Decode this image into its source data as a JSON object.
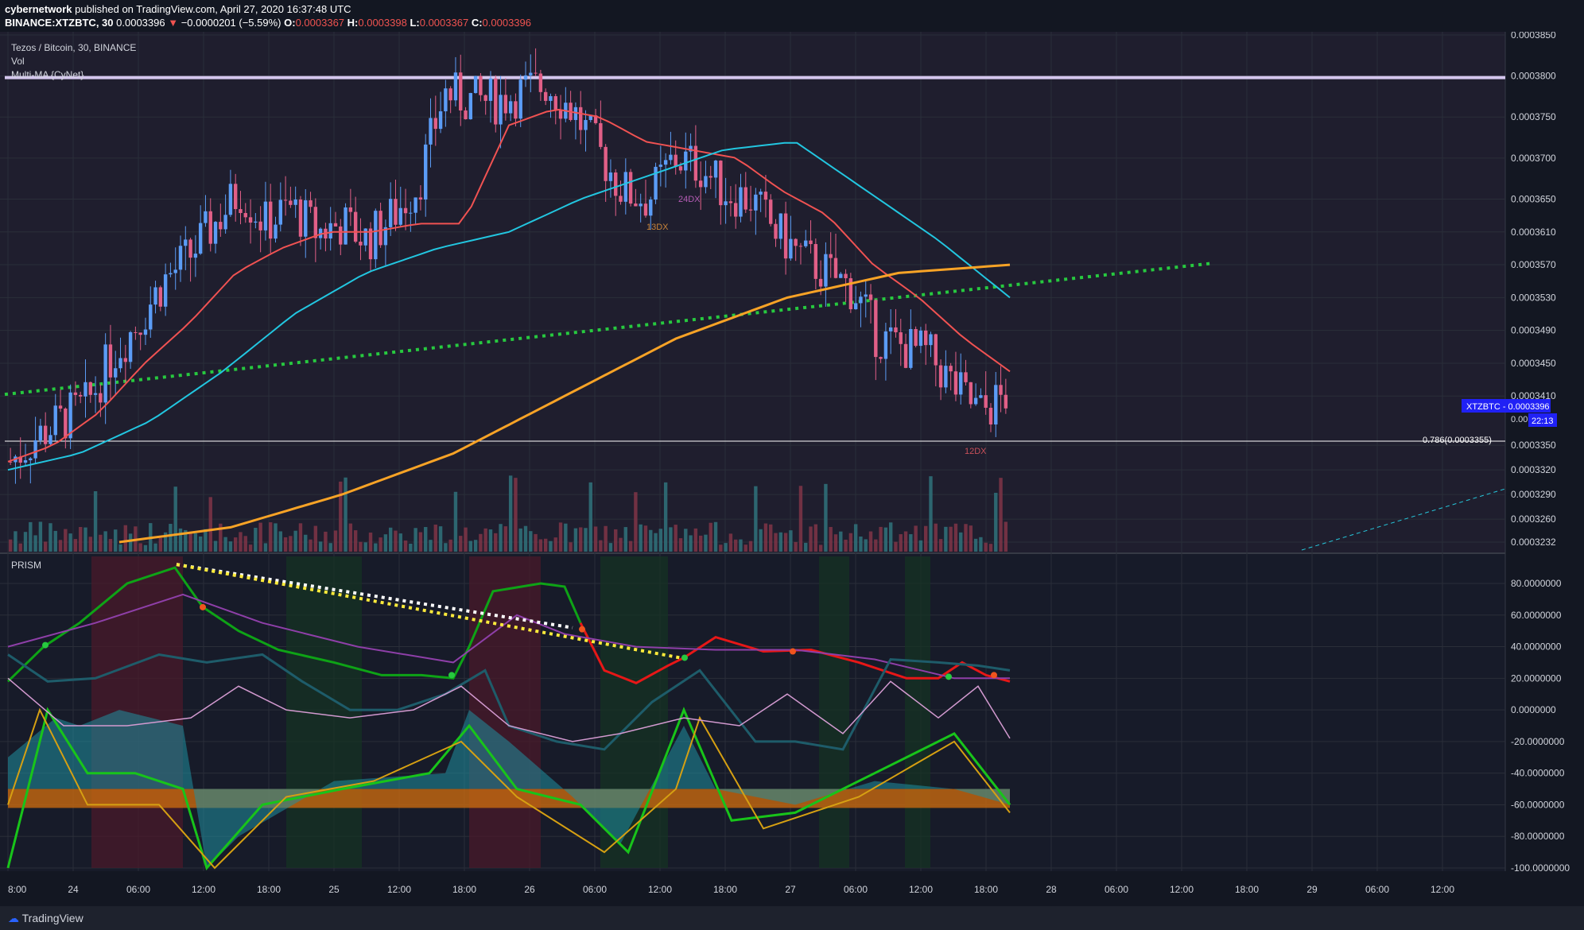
{
  "header": {
    "publisher": "cybernetwork",
    "published_text": "published on TradingView.com, April 27, 2020 16:37:48 UTC",
    "symbol": "BINANCE:XTZBTC, 30",
    "last": "0.0003396",
    "change": "−0.0000201 (−5.59%)",
    "o_label": "O:",
    "o": "0.0003367",
    "h_label": "H:",
    "h": "0.0003398",
    "l_label": "L:",
    "l": "0.0003367",
    "c_label": "C:",
    "c": "0.0003396"
  },
  "legend": {
    "pair": "Tezos / Bitcoin, 30, BINANCE",
    "vol": "Vol",
    "ma": "Multi-MA {CyNet}",
    "prism": "PRISM"
  },
  "price_badge": {
    "label": "XTZBTC - 0.0003396",
    "timer": "22:13",
    "price_partial": "0.00"
  },
  "fib_label": "0.786(0.0003355)",
  "annotations": [
    "13DX",
    "24DX",
    "12DX"
  ],
  "footer": {
    "brand": "TradingView"
  },
  "colors": {
    "bg": "#131722",
    "up": "#5b9cf6",
    "down": "#e15f87",
    "ma_red": "#f05252",
    "ma_cyan": "#22c6e0",
    "ma_orange": "#f8a326",
    "green_dots": "#27c93f",
    "resistance": "#d4c6ee"
  },
  "chart_data": [
    {
      "type": "candlestick",
      "title": "Tezos / Bitcoin, 30, BINANCE",
      "y_ticks": [
        "0.0003850",
        "0.0003800",
        "0.0003750",
        "0.0003700",
        "0.0003650",
        "0.0003610",
        "0.0003570",
        "0.0003530",
        "0.0003490",
        "0.0003450",
        "0.0003410",
        "0.0003350",
        "0.0003320",
        "0.0003290",
        "0.0003260",
        "0.0003232"
      ],
      "x_ticks": [
        "8:00",
        "24",
        "06:00",
        "12:00",
        "18:00",
        "25",
        "12:00",
        "18:00",
        "26",
        "06:00",
        "12:00",
        "18:00",
        "27",
        "06:00",
        "12:00",
        "18:00",
        "28",
        "06:00",
        "12:00",
        "18:00",
        "29",
        "06:00",
        "12:00"
      ],
      "close_series": [
        0.000333,
        0.000336,
        0.000338,
        0.00034,
        0.000346,
        0.00035,
        0.000355,
        0.000358,
        0.000362,
        0.000366,
        0.000362,
        0.000364,
        0.000361,
        0.000362,
        0.00036,
        0.000363,
        0.000367,
        0.000378,
        0.000377,
        0.000377,
        0.000378,
        0.000379,
        0.000376,
        0.000371,
        0.000366,
        0.000365,
        0.00037,
        0.000369,
        0.000366,
        0.000365,
        0.000361,
        0.000358,
        0.000356,
        0.000354,
        0.000348,
        0.000347,
        0.000346,
        0.000342,
        0.000339,
        0.000341
      ],
      "ma_red": [
        0.000333,
        0.000335,
        0.000339,
        0.000345,
        0.00035,
        0.000356,
        0.000359,
        0.000361,
        0.000361,
        0.000362,
        0.000362,
        0.000374,
        0.000376,
        0.000375,
        0.000372,
        0.000371,
        0.00037,
        0.000366,
        0.000363,
        0.000357,
        0.000353,
        0.000348,
        0.000344
      ],
      "ma_cyan": [
        0.000332,
        0.000334,
        0.000338,
        0.000344,
        0.000351,
        0.000356,
        0.000359,
        0.000361,
        0.000365,
        0.000368,
        0.000371,
        0.000372,
        0.000366,
        0.00036,
        0.000353
      ],
      "ma_orange": [
        0.0003232,
        0.000325,
        0.000329,
        0.000334,
        0.000341,
        0.000348,
        0.000353,
        0.000356,
        0.000357
      ],
      "resistance": 0.0003798,
      "fib_level": 0.0003355
    },
    {
      "type": "line",
      "title": "PRISM",
      "y_ticks": [
        "80.0000000",
        "60.0000000",
        "40.0000000",
        "20.0000000",
        "0.0000000",
        "-20.0000000",
        "-40.0000000",
        "-60.0000000",
        "-80.0000000",
        "-100.0000000"
      ],
      "ylim": [
        -100,
        80
      ]
    }
  ]
}
